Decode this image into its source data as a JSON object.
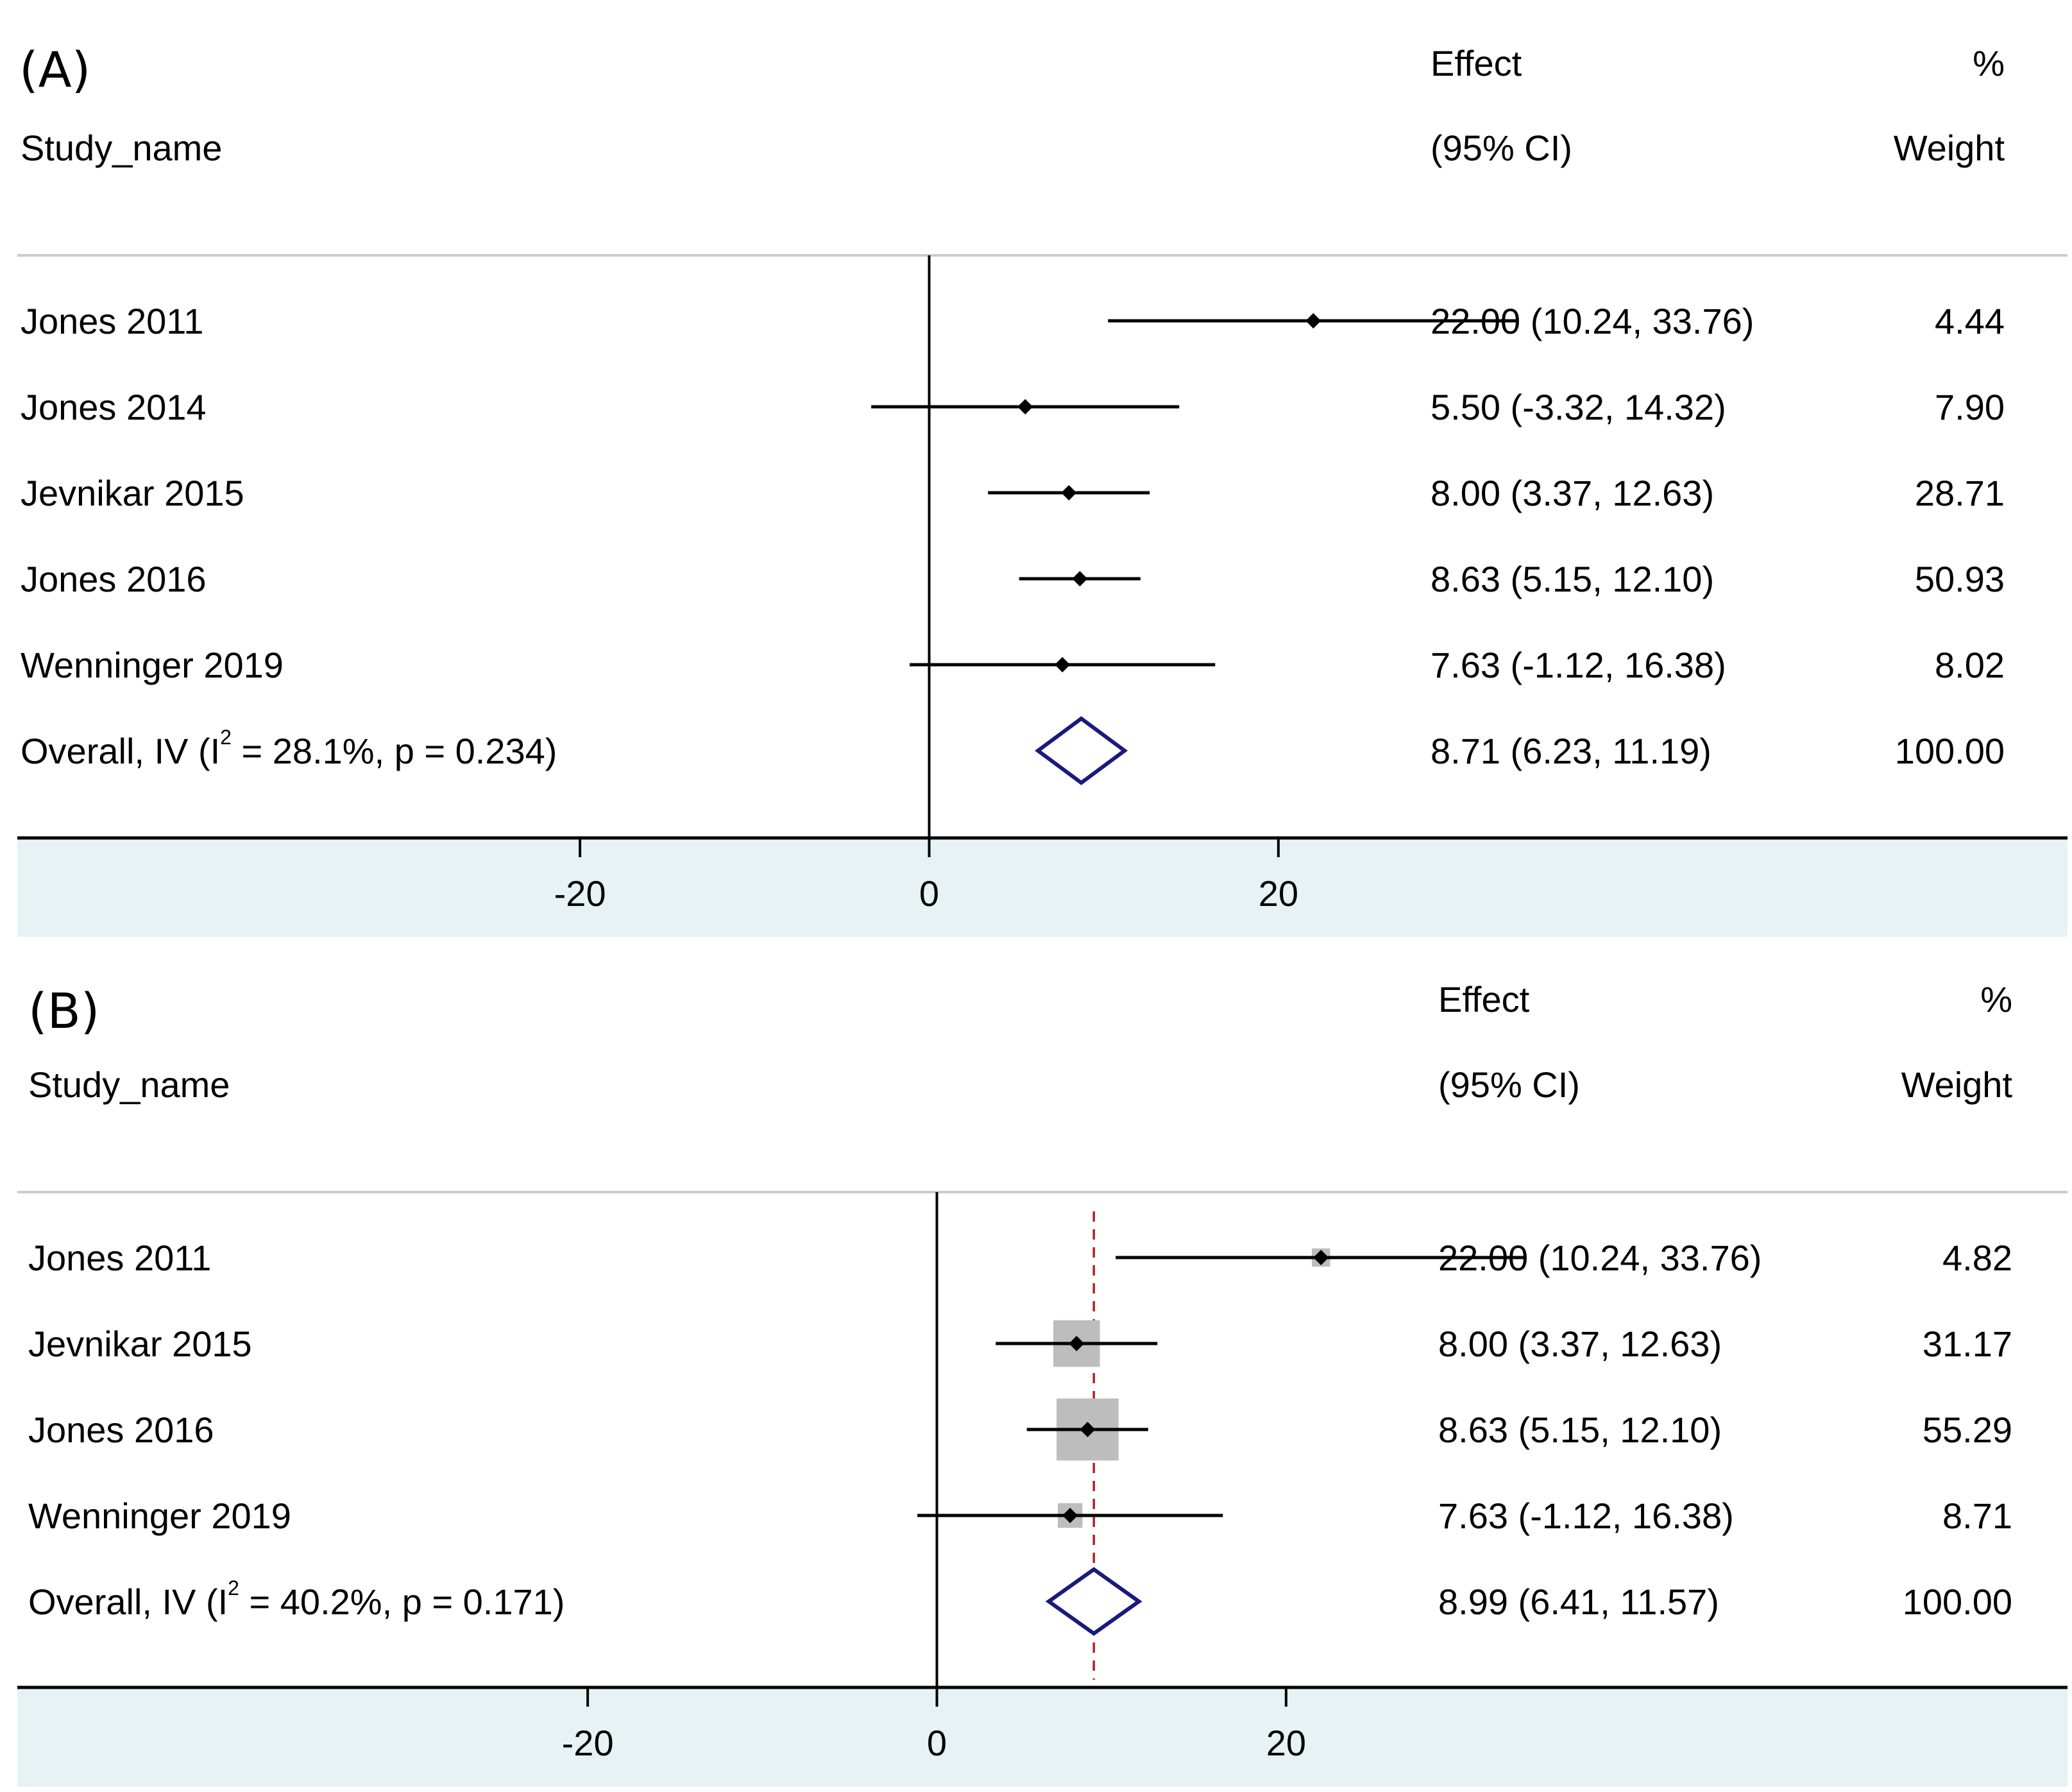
{
  "colors": {
    "axis_band": "#e7f2f4",
    "separator": "#cccccc",
    "diamond": "#1a1a7a",
    "ref_line": "#b22222",
    "weight_box": "#bdbdbd"
  },
  "chart_data": [
    {
      "type": "forest",
      "panel_label": "(A)",
      "header": {
        "study_col": "Study_name",
        "effect_line1": "Effect",
        "effect_line2": "(95% CI)",
        "weight_line1": "%",
        "weight_line2": "Weight"
      },
      "x_ticks": [
        "-20",
        "0",
        "20"
      ],
      "xlim": [
        -27.5,
        39
      ],
      "show_weight_boxes": false,
      "show_overall_line": false,
      "studies": [
        {
          "name": "Jones 2011",
          "effect": 22.0,
          "lower": 10.24,
          "upper": 33.76,
          "ci_text": "22.00 (10.24, 33.76)",
          "weight_text": "4.44",
          "weight": 4.44
        },
        {
          "name": "Jones 2014",
          "effect": 5.5,
          "lower": -3.32,
          "upper": 14.32,
          "ci_text": "5.50 (-3.32, 14.32)",
          "weight_text": "7.90",
          "weight": 7.9
        },
        {
          "name": "Jevnikar 2015",
          "effect": 8.0,
          "lower": 3.37,
          "upper": 12.63,
          "ci_text": "8.00 (3.37, 12.63)",
          "weight_text": "28.71",
          "weight": 28.71
        },
        {
          "name": "Jones 2016",
          "effect": 8.63,
          "lower": 5.15,
          "upper": 12.1,
          "ci_text": "8.63 (5.15, 12.10)",
          "weight_text": "50.93",
          "weight": 50.93
        },
        {
          "name": "Wenninger 2019",
          "effect": 7.63,
          "lower": -1.12,
          "upper": 16.38,
          "ci_text": "7.63 (-1.12, 16.38)",
          "weight_text": "8.02",
          "weight": 8.02
        }
      ],
      "overall": {
        "label_pre": "Overall, IV (I",
        "label_sup": "2",
        "label_post": " = 28.1%, p = 0.234)",
        "effect": 8.71,
        "lower": 6.23,
        "upper": 11.19,
        "ci_text": "8.71 (6.23, 11.19)",
        "weight_text": "100.00"
      }
    },
    {
      "type": "forest",
      "panel_label": "(B)",
      "header": {
        "study_col": "Study_name",
        "effect_line1": "Effect",
        "effect_line2": "(95% CI)",
        "weight_line1": "%",
        "weight_line2": "Weight"
      },
      "x_ticks": [
        "-20",
        "0",
        "20"
      ],
      "xlim": [
        -27.5,
        39
      ],
      "show_weight_boxes": true,
      "show_overall_line": true,
      "studies": [
        {
          "name": "Jones 2011",
          "effect": 22.0,
          "lower": 10.24,
          "upper": 33.76,
          "ci_text": "22.00 (10.24, 33.76)",
          "weight_text": "4.82",
          "weight": 4.82
        },
        {
          "name": "Jevnikar 2015",
          "effect": 8.0,
          "lower": 3.37,
          "upper": 12.63,
          "ci_text": "8.00 (3.37, 12.63)",
          "weight_text": "31.17",
          "weight": 31.17
        },
        {
          "name": "Jones 2016",
          "effect": 8.63,
          "lower": 5.15,
          "upper": 12.1,
          "ci_text": "8.63 (5.15, 12.10)",
          "weight_text": "55.29",
          "weight": 55.29
        },
        {
          "name": "Wenninger 2019",
          "effect": 7.63,
          "lower": -1.12,
          "upper": 16.38,
          "ci_text": "7.63 (-1.12, 16.38)",
          "weight_text": "8.71",
          "weight": 8.71
        }
      ],
      "overall": {
        "label_pre": "Overall, IV (I",
        "label_sup": "2",
        "label_post": " = 40.2%, p = 0.171)",
        "effect": 8.99,
        "lower": 6.41,
        "upper": 11.57,
        "ci_text": "8.99 (6.41, 11.57)",
        "weight_text": "100.00"
      }
    }
  ]
}
